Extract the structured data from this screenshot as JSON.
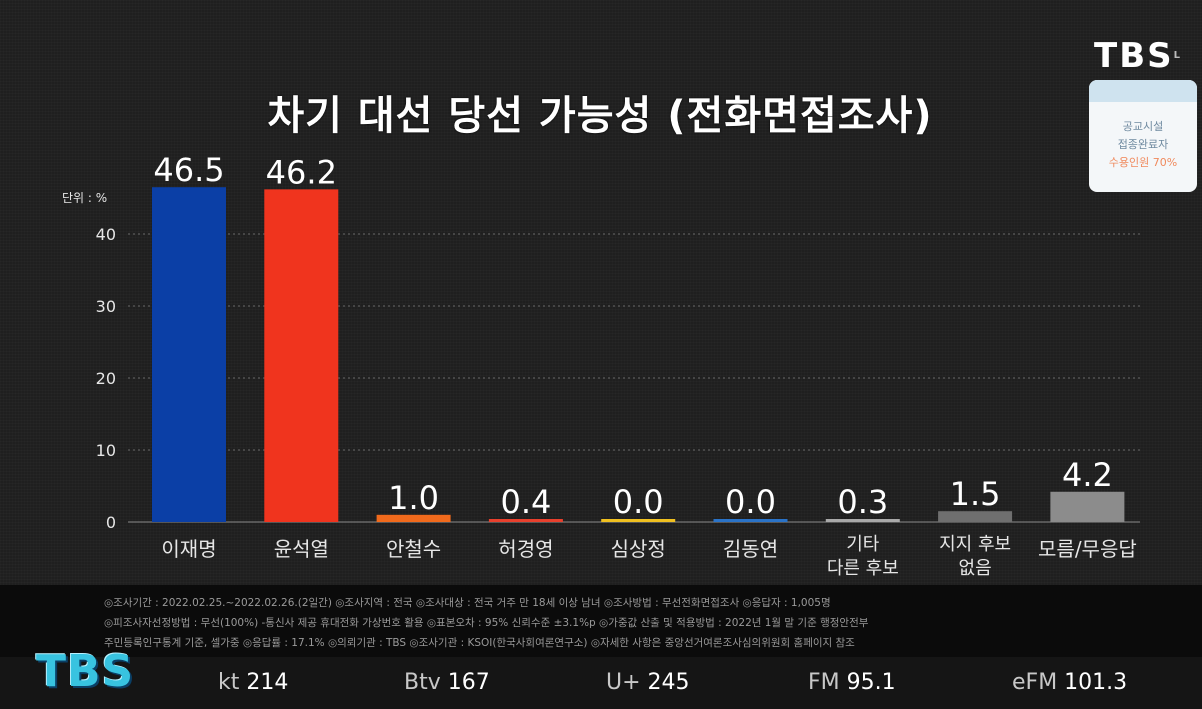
{
  "header": {
    "title": "차기 대선 당선 가능성 (전화면접조사)",
    "logo": "TBS",
    "logo_sup": "L",
    "badge": {
      "line1": "공교시설",
      "line2": "접종완료자",
      "line3": "수용인원 70%"
    }
  },
  "chart_data": {
    "type": "bar",
    "title": "차기 대선 당선 가능성 (전화면접조사)",
    "unit_label": "단위 : %",
    "ylim": [
      0,
      46.5
    ],
    "yticks": [
      "0",
      "10",
      "20",
      "30",
      "40"
    ],
    "grid": true,
    "categories": [
      "이재명",
      "윤석열",
      "안철수",
      "허경영",
      "심상정",
      "김동연",
      "기타\n다른 후보",
      "지지 후보\n없음",
      "모름/무응답"
    ],
    "values": [
      46.5,
      46.2,
      1.0,
      0.4,
      0.0,
      0.0,
      0.3,
      1.5,
      4.2
    ],
    "value_labels": [
      "46.5",
      "46.2",
      "1.0",
      "0.4",
      "0.0",
      "0.0",
      "0.3",
      "1.5",
      "4.2"
    ],
    "colors": [
      "#0b3fa6",
      "#f0341e",
      "#f16a1c",
      "#e8402d",
      "#f0c020",
      "#2a73c8",
      "#a9a9a9",
      "#6f6f6f",
      "#8c8c8c"
    ]
  },
  "notes": {
    "line1": "◎조사기간 : 2022.02.25.~2022.02.26.(2일간)   ◎조사지역 : 전국   ◎조사대상 : 전국 거주 만 18세 이상 남녀   ◎조사방법 : 무선전화면접조사   ◎응답자 : 1,005명",
    "line2": "◎피조사자선정방법 : 무선(100%) -통신사 제공 휴대전화 가상번호 활용   ◎표본오차 : 95% 신뢰수준 ±3.1%p   ◎가중값 산출 및 적용방법 : 2022년 1월 말 기준 행정안전부",
    "line3": "주민등록인구통계 기준, 셀가중   ◎응답률 : 17.1%   ◎의뢰기관 : TBS   ◎조사기관 : KSOI(한국사회여론연구소)   ◎자세한 사항은 중앙선거여론조사심의위원회 홈페이지 참조"
  },
  "footer": {
    "logo": "TBS",
    "channels": [
      {
        "name": "kt",
        "number": "214"
      },
      {
        "name": "Btv",
        "number": "167"
      },
      {
        "name": "U+",
        "number": "245"
      },
      {
        "name": "FM",
        "number": "95.1"
      },
      {
        "name": "eFM",
        "number": "101.3"
      }
    ]
  }
}
